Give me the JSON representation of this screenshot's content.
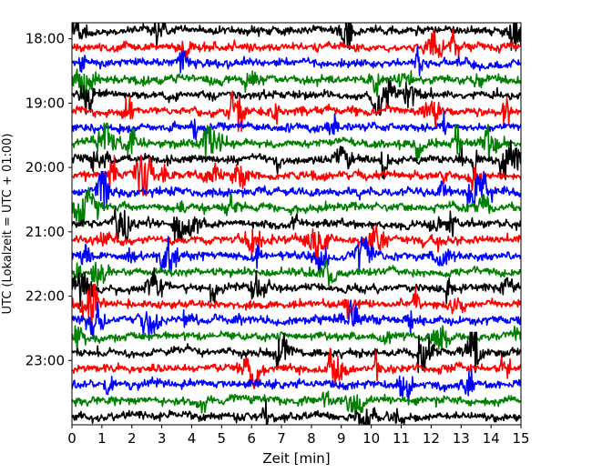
{
  "chart_data": {
    "type": "line",
    "title": "",
    "xlabel": "Zeit  [min]",
    "ylabel": "UTC (Lokalzeit = UTC + 01:00)",
    "xlim": [
      0,
      15
    ],
    "x_ticks": [
      0,
      1,
      2,
      3,
      4,
      5,
      6,
      7,
      8,
      9,
      10,
      11,
      12,
      13,
      14,
      15
    ],
    "y_tick_labels": [
      "18:00",
      "19:00",
      "20:00",
      "21:00",
      "22:00",
      "23:00"
    ],
    "y_start_time": "17:45",
    "y_end_time": "00:00",
    "row_interval": "15 min",
    "trace_colors": [
      "#000000",
      "#ff0000",
      "#0000ff",
      "#008000"
    ],
    "rows": [
      "17:45",
      "18:00",
      "18:15",
      "18:30",
      "18:45",
      "19:00",
      "19:15",
      "19:30",
      "19:45",
      "20:00",
      "20:15",
      "20:30",
      "20:45",
      "21:00",
      "21:15",
      "21:30",
      "21:45",
      "22:00",
      "22:15",
      "22:30",
      "22:45",
      "23:00",
      "23:15",
      "23:30",
      "23:45"
    ],
    "grid": false,
    "legend": "none"
  }
}
